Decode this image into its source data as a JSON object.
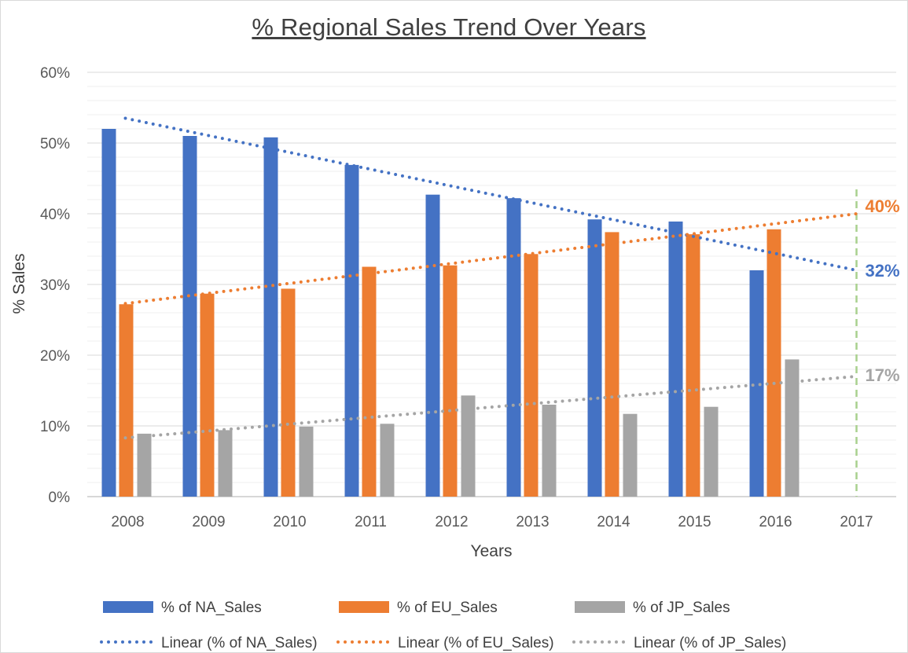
{
  "chart_data": {
    "type": "bar",
    "title": "% Regional Sales Trend Over Years",
    "xlabel": "Years",
    "ylabel": "% Sales",
    "categories": [
      "2008",
      "2009",
      "2010",
      "2011",
      "2012",
      "2013",
      "2014",
      "2015",
      "2016",
      "2017"
    ],
    "ylim": [
      0,
      0.6
    ],
    "yticks": [
      0,
      0.1,
      0.2,
      0.3,
      0.4,
      0.5,
      0.6
    ],
    "ytick_labels": [
      "0%",
      "10%",
      "20%",
      "30%",
      "40%",
      "50%",
      "60%"
    ],
    "grid": true,
    "legend_position": "bottom",
    "series": [
      {
        "name": "% of NA_Sales",
        "color": "#4472c4",
        "values": [
          0.52,
          0.51,
          0.508,
          0.469,
          0.427,
          0.422,
          0.392,
          0.389,
          0.32,
          null
        ]
      },
      {
        "name": "% of EU_Sales",
        "color": "#ed7d31",
        "values": [
          0.272,
          0.287,
          0.294,
          0.325,
          0.327,
          0.343,
          0.374,
          0.371,
          0.378,
          null
        ]
      },
      {
        "name": "% of JP_Sales",
        "color": "#a5a5a5",
        "values": [
          0.089,
          0.094,
          0.099,
          0.103,
          0.143,
          0.13,
          0.117,
          0.127,
          0.194,
          null
        ]
      }
    ],
    "trendlines": [
      {
        "name": "Linear (% of NA_Sales)",
        "color": "#4472c4",
        "start": 0.535,
        "end": 0.32,
        "end_label": "32%"
      },
      {
        "name": "Linear (% of EU_Sales)",
        "color": "#ed7d31",
        "start": 0.273,
        "end": 0.4,
        "end_label": "40%"
      },
      {
        "name": "Linear (% of JP_Sales)",
        "color": "#a5a5a5",
        "start": 0.083,
        "end": 0.17,
        "end_label": "17%"
      }
    ],
    "forecast_marker": {
      "category": "2017",
      "color": "#a9d18e"
    }
  }
}
